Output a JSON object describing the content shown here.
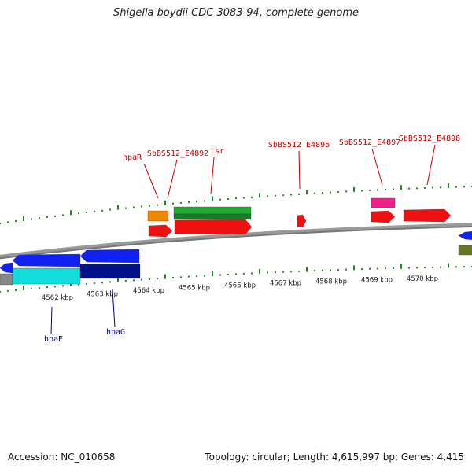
{
  "title": "Shigella boydii CDC 3083-94, complete genome",
  "accession": "Accession: NC_010658",
  "summary": "Topology: circular; Length: 4,615,997 bp; Genes: 4,415",
  "colors": {
    "label_red": "#cc0000",
    "label_blue": "#0000aa",
    "ticks_green": "#228822",
    "backbone": "#777777",
    "red": "#ee1111",
    "orange": "#ee8800",
    "green": "#22aa33",
    "pink": "#ee2288",
    "blue": "#1122ee",
    "cyan": "#11dddd",
    "navy": "#001188",
    "olive": "#667722"
  },
  "scale_labels": [
    "4562 kbp",
    "4563 kbp",
    "4564 kbp",
    "4565 kbp",
    "4566 kbp",
    "4567 kbp",
    "4568 kbp",
    "4569 kbp",
    "4570 kbp"
  ],
  "gene_labels": [
    {
      "name": "hpaR",
      "color": "red"
    },
    {
      "name": "SbBS512_E4892",
      "color": "red"
    },
    {
      "name": "tsr",
      "color": "red"
    },
    {
      "name": "SbBS512_E4895",
      "color": "red"
    },
    {
      "name": "SbBS512_E4897",
      "color": "red"
    },
    {
      "name": "SbBS512_E4898",
      "color": "red"
    },
    {
      "name": "hpaE",
      "color": "blue"
    },
    {
      "name": "hpaG",
      "color": "blue"
    }
  ]
}
